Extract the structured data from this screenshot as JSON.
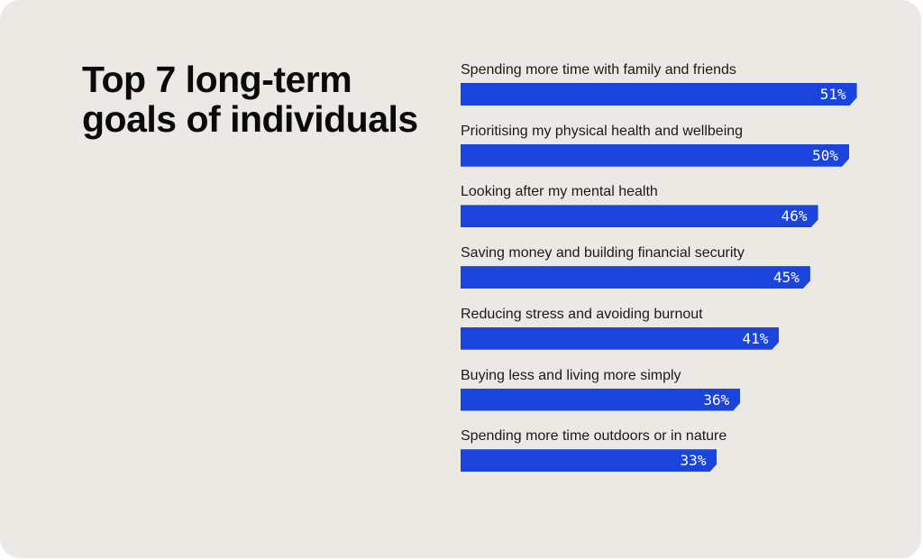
{
  "chart_data": {
    "type": "bar",
    "orientation": "horizontal",
    "title": "Top 7 long-term goals of individuals",
    "categories": [
      "Spending more time with family and friends",
      "Prioritising my physical health and wellbeing",
      "Looking after my mental health",
      "Saving money and building financial security",
      "Reducing stress and avoiding burnout",
      "Buying less and living more simply",
      "Spending more time outdoors or in nature"
    ],
    "values": [
      51,
      50,
      46,
      45,
      41,
      36,
      33
    ],
    "value_labels": [
      "51%",
      "50%",
      "46%",
      "45%",
      "41%",
      "36%",
      "33%"
    ],
    "unit": "%",
    "grid": false,
    "colors": {
      "bar": "#1A44DB",
      "background": "#ECE9E5",
      "text": "#0A0A0A"
    }
  }
}
